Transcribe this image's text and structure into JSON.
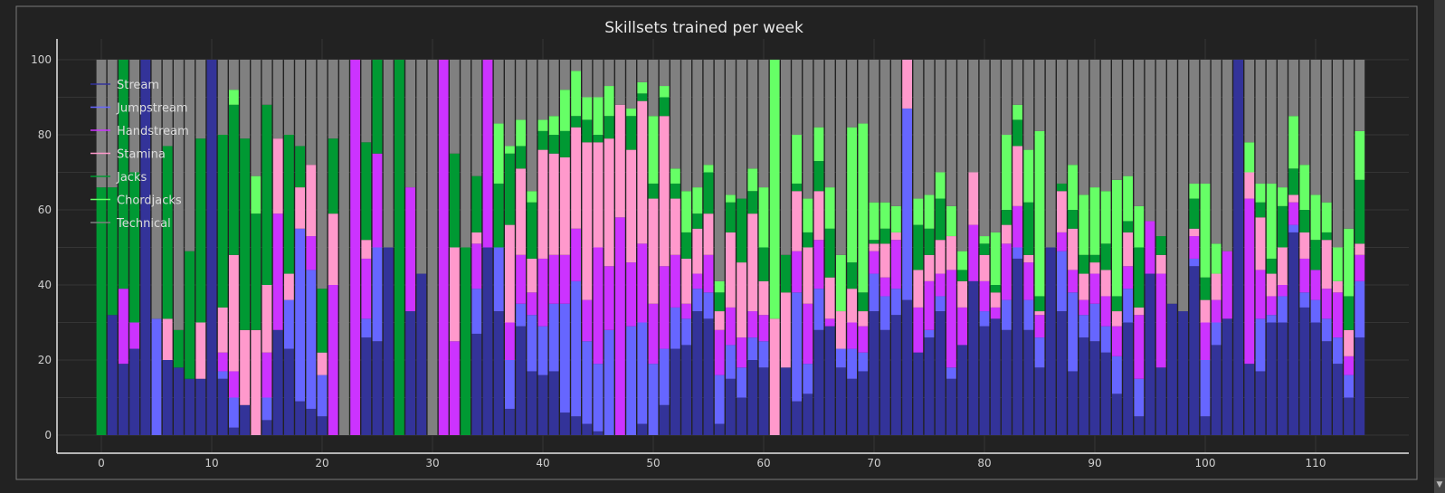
{
  "chart_data": {
    "type": "bar",
    "stacked": true,
    "title": "Skillsets trained per week",
    "xlabel": "",
    "ylabel": "",
    "ylim": [
      0,
      100
    ],
    "xlim": [
      -1,
      115
    ],
    "x_ticks": [
      "0",
      "10",
      "20",
      "30",
      "40",
      "50",
      "60",
      "70",
      "80",
      "90",
      "100",
      "110"
    ],
    "y_ticks": [
      "0",
      "20",
      "40",
      "60",
      "80",
      "100"
    ],
    "grid": true,
    "legend_position": "top-left",
    "categories_count": 115,
    "series": [
      {
        "name": "Stream",
        "color": "#333399",
        "values": [
          0,
          32,
          19,
          23,
          100,
          0,
          20,
          18,
          15,
          15,
          100,
          15,
          2,
          8,
          0,
          4,
          28,
          23,
          9,
          7,
          5,
          0,
          0,
          0,
          26,
          25,
          50,
          0,
          33,
          43,
          0,
          0,
          0,
          0,
          27,
          50,
          33,
          7,
          29,
          17,
          16,
          17,
          6,
          5,
          3,
          1,
          0,
          0,
          0,
          3,
          0,
          8,
          23,
          24,
          33,
          31,
          3,
          15,
          10,
          20,
          18,
          0,
          18,
          9,
          11,
          28,
          29,
          18,
          15,
          17,
          33,
          28,
          32,
          36,
          22,
          26,
          33,
          15,
          24,
          41,
          29,
          31,
          28,
          47,
          28,
          18,
          50,
          33,
          17,
          26,
          25,
          22,
          11,
          30,
          5,
          43,
          18,
          35,
          33,
          45,
          5,
          24,
          31,
          100,
          19,
          17,
          30,
          30,
          54,
          34,
          30,
          25,
          19,
          10,
          26
        ]
      },
      {
        "name": "Jumpstream",
        "color": "#6666ff",
        "values": [
          0,
          0,
          0,
          0,
          0,
          31,
          0,
          0,
          0,
          0,
          0,
          2,
          8,
          0,
          0,
          6,
          0,
          13,
          46,
          37,
          11,
          0,
          0,
          0,
          5,
          25,
          0,
          0,
          0,
          0,
          0,
          0,
          0,
          0,
          12,
          0,
          17,
          13,
          6,
          15,
          13,
          18,
          29,
          36,
          22,
          18,
          28,
          0,
          29,
          27,
          19,
          15,
          11,
          7,
          6,
          7,
          13,
          9,
          8,
          6,
          7,
          0,
          0,
          29,
          8,
          11,
          0,
          5,
          8,
          5,
          10,
          9,
          7,
          51,
          0,
          2,
          4,
          3,
          0,
          0,
          4,
          0,
          8,
          3,
          8,
          8,
          0,
          16,
          21,
          6,
          10,
          7,
          10,
          9,
          10,
          0,
          0,
          0,
          0,
          2,
          15,
          6,
          0,
          0,
          0,
          14,
          2,
          7,
          2,
          4,
          6,
          6,
          7,
          6,
          15
        ]
      },
      {
        "name": "Handstream",
        "color": "#cc33ff",
        "values": [
          0,
          0,
          20,
          7,
          0,
          0,
          0,
          0,
          0,
          0,
          0,
          5,
          7,
          0,
          0,
          12,
          31,
          0,
          0,
          9,
          0,
          40,
          0,
          100,
          16,
          25,
          0,
          0,
          33,
          0,
          0,
          100,
          25,
          0,
          12,
          50,
          0,
          10,
          13,
          6,
          18,
          13,
          13,
          14,
          11,
          31,
          17,
          58,
          17,
          21,
          16,
          22,
          14,
          4,
          4,
          10,
          12,
          10,
          8,
          7,
          7,
          0,
          0,
          11,
          16,
          13,
          2,
          0,
          7,
          7,
          6,
          5,
          13,
          0,
          12,
          13,
          6,
          26,
          10,
          15,
          8,
          3,
          15,
          11,
          10,
          6,
          0,
          5,
          6,
          4,
          8,
          8,
          8,
          6,
          17,
          14,
          25,
          0,
          0,
          6,
          10,
          6,
          18,
          0,
          44,
          13,
          5,
          3,
          6,
          9,
          8,
          8,
          12,
          5,
          7
        ]
      },
      {
        "name": "Stamina",
        "color": "#ff99cc",
        "values": [
          0,
          0,
          0,
          0,
          0,
          0,
          11,
          0,
          0,
          15,
          0,
          12,
          31,
          20,
          28,
          18,
          20,
          7,
          11,
          19,
          6,
          19,
          0,
          0,
          5,
          0,
          0,
          0,
          0,
          0,
          0,
          0,
          25,
          0,
          3,
          0,
          0,
          26,
          23,
          9,
          29,
          27,
          26,
          27,
          42,
          28,
          34,
          30,
          30,
          38,
          28,
          40,
          15,
          12,
          12,
          11,
          5,
          20,
          20,
          26,
          9,
          31,
          20,
          16,
          15,
          13,
          11,
          10,
          9,
          4,
          2,
          9,
          2,
          13,
          10,
          7,
          9,
          9,
          7,
          14,
          7,
          4,
          5,
          16,
          2,
          1,
          0,
          11,
          11,
          7,
          3,
          7,
          4,
          9,
          2,
          0,
          5,
          0,
          0,
          2,
          6,
          7,
          0,
          0,
          7,
          14,
          6,
          10,
          2,
          7,
          0,
          13,
          3,
          7,
          3
        ]
      },
      {
        "name": "Jacks",
        "color": "#009933",
        "values": [
          66,
          34,
          61,
          40,
          0,
          0,
          46,
          10,
          34,
          49,
          0,
          46,
          40,
          51,
          31,
          48,
          0,
          37,
          11,
          0,
          17,
          20,
          0,
          0,
          26,
          25,
          0,
          100,
          0,
          0,
          0,
          0,
          25,
          50,
          15,
          0,
          17,
          19,
          6,
          15,
          5,
          5,
          7,
          3,
          6,
          2,
          6,
          0,
          9,
          2,
          4,
          5,
          4,
          7,
          4,
          11,
          5,
          8,
          17,
          6,
          9,
          0,
          10,
          2,
          4,
          8,
          13,
          0,
          7,
          5,
          1,
          4,
          0,
          0,
          12,
          7,
          11,
          0,
          3,
          0,
          3,
          2,
          4,
          7,
          14,
          4,
          0,
          2,
          5,
          5,
          2,
          7,
          4,
          3,
          16,
          0,
          5,
          0,
          0,
          8,
          6,
          0,
          0,
          0,
          0,
          4,
          4,
          11,
          7,
          6,
          8,
          2,
          0,
          9,
          17
        ]
      },
      {
        "name": "Chordjacks",
        "color": "#66ff66",
        "values": [
          0,
          0,
          0,
          0,
          0,
          0,
          0,
          0,
          0,
          0,
          0,
          0,
          4,
          0,
          10,
          0,
          0,
          0,
          0,
          0,
          0,
          0,
          0,
          0,
          0,
          0,
          0,
          0,
          0,
          0,
          0,
          0,
          0,
          0,
          0,
          0,
          16,
          2,
          7,
          3,
          3,
          5,
          11,
          12,
          6,
          10,
          8,
          0,
          2,
          3,
          18,
          3,
          4,
          11,
          7,
          2,
          3,
          2,
          0,
          6,
          16,
          69,
          0,
          13,
          9,
          9,
          11,
          15,
          36,
          45,
          10,
          7,
          7,
          0,
          7,
          9,
          7,
          8,
          5,
          0,
          2,
          14,
          20,
          4,
          14,
          44,
          0,
          0,
          12,
          16,
          18,
          14,
          31,
          12,
          11,
          0,
          0,
          0,
          0,
          4,
          25,
          8,
          0,
          0,
          8,
          5,
          20,
          5,
          14,
          12,
          12,
          8,
          9,
          18,
          13
        ]
      },
      {
        "name": "Technical",
        "color": "#808080",
        "values": [
          34,
          34,
          0,
          30,
          0,
          69,
          23,
          72,
          51,
          21,
          0,
          20,
          8,
          21,
          31,
          12,
          21,
          20,
          23,
          28,
          61,
          21,
          100,
          0,
          22,
          0,
          50,
          0,
          34,
          57,
          100,
          0,
          25,
          50,
          31,
          0,
          17,
          23,
          16,
          35,
          16,
          15,
          8,
          3,
          10,
          10,
          7,
          12,
          13,
          6,
          15,
          7,
          29,
          35,
          34,
          28,
          59,
          36,
          37,
          29,
          34,
          0,
          52,
          20,
          37,
          18,
          34,
          52,
          18,
          17,
          38,
          38,
          39,
          0,
          37,
          36,
          30,
          39,
          51,
          30,
          47,
          46,
          20,
          12,
          24,
          19,
          50,
          33,
          28,
          36,
          34,
          35,
          32,
          31,
          39,
          43,
          47,
          65,
          67,
          33,
          33,
          49,
          51,
          0,
          22,
          33,
          33,
          34,
          15,
          28,
          36,
          38,
          50,
          45,
          19
        ]
      }
    ]
  },
  "ui": {
    "scroll_down_icon": "▼"
  }
}
